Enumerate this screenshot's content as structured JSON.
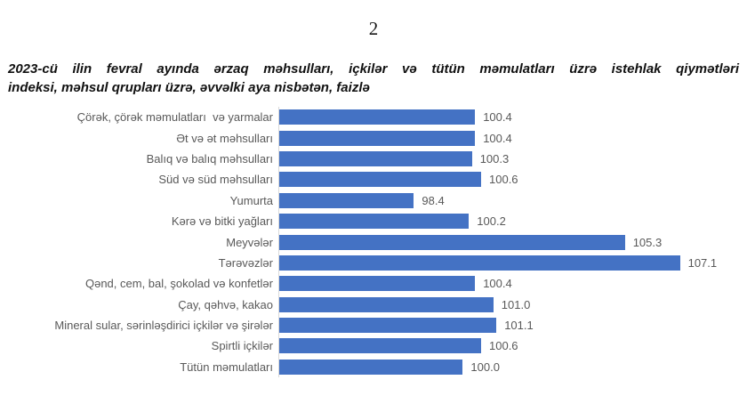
{
  "page": {
    "number": "2"
  },
  "title": {
    "full": "2023-cü ilin fevral ayında ərzaq məhsulları, içkilər və tütün məmulatları üzrə istehlak qiymətləri indeksi, məhsul qrupları üzrə, əvvəlki aya nisbətən, faizlə",
    "line1": "2023-cü ilin fevral ayında ərzaq məhsulları, içkilər və tütün məmulatları üzrə istehlak qiymətləri",
    "line2": "indeksi, məhsul qrupları üzrə, əvvəlki aya nisbətən, faizlə"
  },
  "chart_data": {
    "type": "bar",
    "orientation": "horizontal",
    "title": "2023-cü ilin fevral ayında ərzaq məhsulları, içkilər və tütün məmulatları üzrə istehlak qiymətləri indeksi, məhsul qrupları üzrə, əvvəlki aya nisbətən, faizlə",
    "categories": [
      "Çörək, çörək məmulatları  və yarmalar",
      "Ət və ət məhsulları",
      "Balıq və balıq məhsulları",
      "Süd və süd məhsulları",
      "Yumurta",
      "Kərə və bitki yağları",
      "Meyvələr",
      "Tərəvəzlər",
      "Qənd, cem, bal, şokolad və konfetlər",
      "Çay, qəhvə, kakao",
      "Mineral sular, sərinləşdirici içkilər və şirələr",
      "Spirtli içkilər",
      "Tütün məmulatları"
    ],
    "values": [
      100.4,
      100.4,
      100.3,
      100.6,
      98.4,
      100.2,
      105.3,
      107.1,
      100.4,
      101.0,
      101.1,
      100.6,
      100.0
    ],
    "value_label_decimals": 1,
    "xlim": [
      94,
      108
    ],
    "grid": false,
    "legend": false,
    "bar_color": "#4472C4",
    "label_color": "#595959",
    "axis_line_color": "#D9D9D9"
  }
}
